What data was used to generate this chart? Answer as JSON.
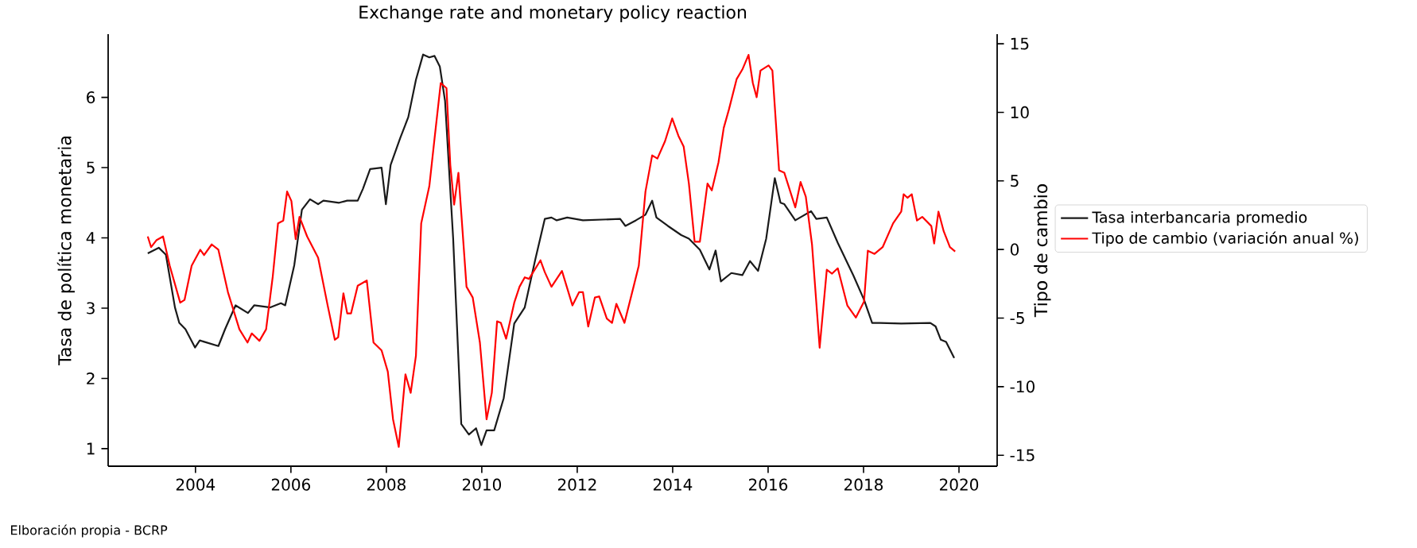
{
  "chart_data": {
    "type": "line",
    "title": "Exchange rate and monetary policy reaction",
    "ylabel": "Tasa de política monetaria",
    "y2label": "Tipo de cambio",
    "annotations": [
      "Elboración propia - BCRP"
    ],
    "xlim": [
      2002.17,
      2020.8
    ],
    "xticks": [
      2004,
      2006,
      2008,
      2010,
      2012,
      2014,
      2016,
      2018,
      2020
    ],
    "ylim": [
      0.75,
      6.9
    ],
    "yticks": [
      1,
      2,
      3,
      4,
      5,
      6
    ],
    "y2lim": [
      -15.8,
      15.7
    ],
    "y2ticks": [
      -15,
      -10,
      -5,
      0,
      5,
      10,
      15
    ],
    "legend": "right",
    "grid": false,
    "series": [
      {
        "name": "Tasa interbancaria promedio",
        "color": "#1a1a1a",
        "x": [
          2003.0,
          2003.23,
          2003.38,
          2003.57,
          2003.66,
          2003.79,
          2003.99,
          2004.09,
          2004.48,
          2004.62,
          2004.84,
          2005.1,
          2005.23,
          2005.57,
          2005.79,
          2005.88,
          2006.07,
          2006.23,
          2006.4,
          2006.57,
          2006.68,
          2007.01,
          2007.18,
          2007.4,
          2007.51,
          2007.66,
          2007.9,
          2007.99,
          2008.09,
          2008.29,
          2008.46,
          2008.62,
          2008.77,
          2008.9,
          2009.01,
          2009.12,
          2009.23,
          2009.4,
          2009.57,
          2009.73,
          2009.88,
          2009.99,
          2010.1,
          2010.26,
          2010.46,
          2010.68,
          2010.9,
          2011.12,
          2011.32,
          2011.46,
          2011.57,
          2011.79,
          2012.12,
          2012.9,
          2013.01,
          2013.23,
          2013.43,
          2013.57,
          2013.66,
          2013.9,
          2014.18,
          2014.34,
          2014.57,
          2014.77,
          2014.9,
          2015.01,
          2015.23,
          2015.46,
          2015.62,
          2015.79,
          2015.96,
          2016.14,
          2016.26,
          2016.34,
          2016.57,
          2016.9,
          2017.01,
          2017.23,
          2017.46,
          2017.79,
          2018.01,
          2018.18,
          2018.34,
          2018.79,
          2019.4,
          2019.51,
          2019.62,
          2019.73,
          2019.9
        ],
        "values": [
          3.78,
          3.86,
          3.76,
          3.01,
          2.79,
          2.7,
          2.44,
          2.54,
          2.46,
          2.7,
          3.04,
          2.93,
          3.04,
          3.01,
          3.07,
          3.04,
          3.61,
          4.4,
          4.55,
          4.48,
          4.53,
          4.5,
          4.53,
          4.53,
          4.7,
          4.98,
          5.0,
          4.48,
          5.04,
          5.42,
          5.72,
          6.25,
          6.61,
          6.57,
          6.59,
          6.44,
          5.95,
          3.99,
          1.35,
          1.2,
          1.29,
          1.05,
          1.26,
          1.26,
          1.72,
          2.78,
          3.01,
          3.69,
          4.27,
          4.29,
          4.25,
          4.29,
          4.25,
          4.27,
          4.17,
          4.25,
          4.33,
          4.53,
          4.29,
          4.17,
          4.04,
          3.99,
          3.83,
          3.55,
          3.82,
          3.38,
          3.5,
          3.47,
          3.67,
          3.53,
          3.99,
          4.85,
          4.5,
          4.48,
          4.25,
          4.38,
          4.27,
          4.29,
          3.93,
          3.46,
          3.12,
          2.79,
          2.79,
          2.78,
          2.79,
          2.74,
          2.55,
          2.52,
          2.29
        ]
      },
      {
        "name": "Tipo de cambio (variación anual %)",
        "color": "#ff0000",
        "axis": "y2",
        "x": [
          2003.0,
          2003.07,
          2003.18,
          2003.32,
          2003.46,
          2003.68,
          2003.77,
          2003.92,
          2004.1,
          2004.18,
          2004.34,
          2004.48,
          2004.68,
          2004.92,
          2005.09,
          2005.18,
          2005.34,
          2005.48,
          2005.62,
          2005.73,
          2005.84,
          2005.92,
          2006.01,
          2006.1,
          2006.18,
          2006.34,
          2006.57,
          2006.77,
          2006.92,
          2006.99,
          2007.1,
          2007.18,
          2007.26,
          2007.4,
          2007.59,
          2007.73,
          2007.9,
          2008.03,
          2008.14,
          2008.26,
          2008.4,
          2008.51,
          2008.62,
          2008.73,
          2008.9,
          2009.01,
          2009.14,
          2009.26,
          2009.34,
          2009.42,
          2009.51,
          2009.68,
          2009.81,
          2009.96,
          2010.1,
          2010.21,
          2010.32,
          2010.4,
          2010.51,
          2010.68,
          2010.79,
          2010.9,
          2010.99,
          2011.23,
          2011.32,
          2011.46,
          2011.68,
          2011.9,
          2012.04,
          2012.12,
          2012.23,
          2012.37,
          2012.46,
          2012.62,
          2012.73,
          2012.82,
          2012.99,
          2013.18,
          2013.29,
          2013.43,
          2013.57,
          2013.68,
          2013.84,
          2013.99,
          2014.12,
          2014.23,
          2014.34,
          2014.46,
          2014.57,
          2014.73,
          2014.82,
          2014.96,
          2015.07,
          2015.18,
          2015.34,
          2015.46,
          2015.59,
          2015.68,
          2015.76,
          2015.84,
          2016.01,
          2016.09,
          2016.23,
          2016.34,
          2016.57,
          2016.68,
          2016.79,
          2016.92,
          2017.08,
          2017.23,
          2017.34,
          2017.46,
          2017.66,
          2017.84,
          2018.01,
          2018.09,
          2018.23,
          2018.4,
          2018.62,
          2018.79,
          2018.84,
          2018.92,
          2019.01,
          2019.12,
          2019.23,
          2019.42,
          2019.48,
          2019.57,
          2019.68,
          2019.81,
          2019.92
        ],
        "values": [
          0.95,
          0.17,
          0.67,
          0.95,
          -1.18,
          -3.88,
          -3.68,
          -1.18,
          -0.02,
          -0.41,
          0.37,
          -0.02,
          -3.11,
          -5.82,
          -6.78,
          -6.12,
          -6.66,
          -5.82,
          -1.95,
          1.91,
          2.11,
          4.23,
          3.53,
          0.75,
          2.38,
          0.95,
          -0.6,
          -4.08,
          -6.58,
          -6.4,
          -3.19,
          -4.66,
          -4.66,
          -2.64,
          -2.26,
          -6.78,
          -7.36,
          -8.9,
          -12.38,
          -14.39,
          -9.1,
          -10.45,
          -7.74,
          1.91,
          4.61,
          8.09,
          12.14,
          11.76,
          6.16,
          3.27,
          5.59,
          -2.72,
          -3.5,
          -6.78,
          -12.38,
          -10.45,
          -5.24,
          -5.35,
          -6.51,
          -3.88,
          -2.72,
          -2.03,
          -2.14,
          -0.79,
          -1.65,
          -2.72,
          -1.56,
          -4.08,
          -3.11,
          -3.11,
          -5.62,
          -3.5,
          -3.42,
          -5.04,
          -5.35,
          -3.96,
          -5.35,
          -2.72,
          -1.18,
          4.23,
          6.86,
          6.63,
          7.9,
          9.56,
          8.29,
          7.51,
          4.81,
          0.56,
          0.56,
          4.81,
          4.31,
          6.35,
          8.86,
          10.22,
          12.42,
          13.12,
          14.19,
          12.14,
          11.1,
          13.04,
          13.42,
          13.04,
          5.77,
          5.59,
          3.07,
          4.92,
          3.85,
          0.37,
          -7.16,
          -1.48,
          -1.76,
          -1.37,
          -4.08,
          -4.96,
          -3.8,
          -0.09,
          -0.32,
          0.17,
          1.91,
          2.76,
          4.03,
          3.77,
          4.03,
          2.11,
          2.38,
          1.71,
          0.44,
          2.76,
          1.33,
          0.17,
          -0.14
        ]
      }
    ]
  }
}
